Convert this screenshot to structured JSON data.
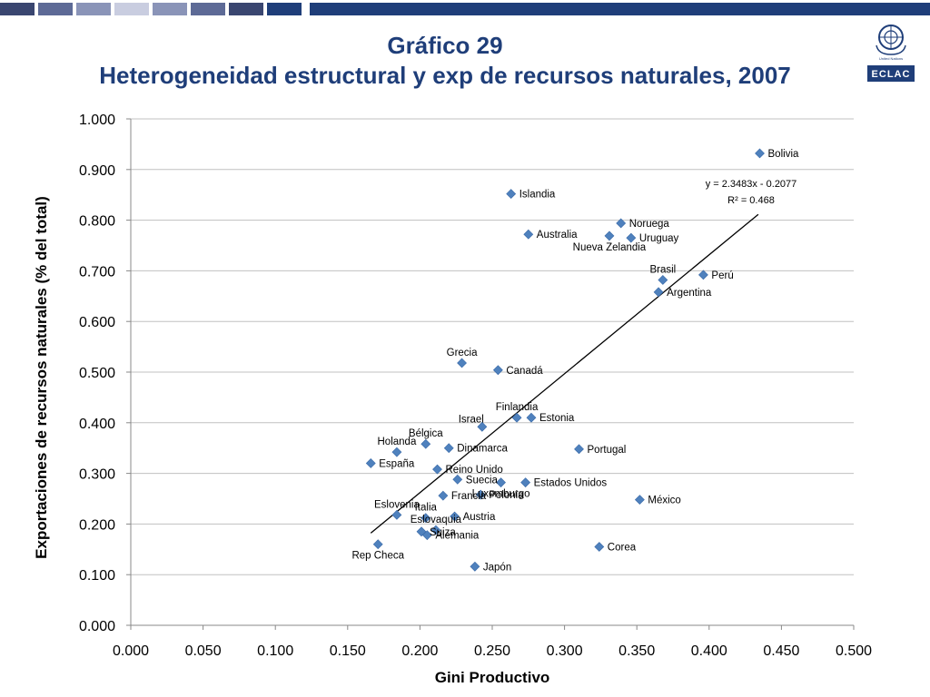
{
  "header": {
    "bar_colors": [
      "#3a4670",
      "#5d6a96",
      "#8a94b8",
      "#c9cde0",
      "#8a94b8",
      "#5d6a96",
      "#3a4670",
      "#1f3e79"
    ],
    "title_line1": "Gráfico 29",
    "title_line2": "Heterogeneidad estructural y exp de recursos naturales, 2007",
    "logo_text": "ECLAC",
    "logo_subtext": "United Nations"
  },
  "colors": {
    "title": "#1f3e79",
    "marker": "#4f81bd",
    "grid": "#c0c0c0",
    "trendline": "#000000"
  },
  "chart_data": {
    "type": "scatter",
    "xlabel": "Gini  Productivo",
    "ylabel": "Exportaciones de recursos naturales (% del total)",
    "xlim": [
      0,
      0.5
    ],
    "ylim": [
      0,
      1
    ],
    "x_ticks": [
      "0.000",
      "0.050",
      "0.100",
      "0.150",
      "0.200",
      "0.250",
      "0.300",
      "0.350",
      "0.400",
      "0.450",
      "0.500"
    ],
    "y_ticks": [
      "0.000",
      "0.100",
      "0.200",
      "0.300",
      "0.400",
      "0.500",
      "0.600",
      "0.700",
      "0.800",
      "0.900",
      "1.000"
    ],
    "grid": "horizontal",
    "trendline": {
      "equation": "y = 2.3483x - 0.2077",
      "r2": "R² = 0.468",
      "slope": 2.3483,
      "intercept": -0.2077,
      "x_range": [
        0.166,
        0.434
      ]
    },
    "points": [
      {
        "label": "Bolivia",
        "x": 0.435,
        "y": 0.932,
        "pos": "right"
      },
      {
        "label": "Islandia",
        "x": 0.263,
        "y": 0.852,
        "pos": "right"
      },
      {
        "label": "Noruega",
        "x": 0.339,
        "y": 0.794,
        "pos": "right"
      },
      {
        "label": "Australia",
        "x": 0.275,
        "y": 0.772,
        "pos": "right"
      },
      {
        "label": "Nueva Zelandia",
        "x": 0.331,
        "y": 0.769,
        "pos": "below"
      },
      {
        "label": "Uruguay",
        "x": 0.346,
        "y": 0.765,
        "pos": "right"
      },
      {
        "label": "Perú",
        "x": 0.396,
        "y": 0.692,
        "pos": "right"
      },
      {
        "label": "Brasil",
        "x": 0.368,
        "y": 0.682,
        "pos": "above"
      },
      {
        "label": "Argentina",
        "x": 0.365,
        "y": 0.658,
        "pos": "right"
      },
      {
        "label": "Grecia",
        "x": 0.229,
        "y": 0.518,
        "pos": "above"
      },
      {
        "label": "Canadá",
        "x": 0.254,
        "y": 0.504,
        "pos": "right"
      },
      {
        "label": "Finlandia",
        "x": 0.267,
        "y": 0.41,
        "pos": "above"
      },
      {
        "label": "Estonia",
        "x": 0.277,
        "y": 0.41,
        "pos": "right"
      },
      {
        "label": "Israel",
        "x": 0.243,
        "y": 0.392,
        "pos": "left-above"
      },
      {
        "label": "Bélgica",
        "x": 0.204,
        "y": 0.358,
        "pos": "above"
      },
      {
        "label": "Holanda",
        "x": 0.184,
        "y": 0.342,
        "pos": "above"
      },
      {
        "label": "Dinamarca",
        "x": 0.22,
        "y": 0.35,
        "pos": "right"
      },
      {
        "label": "Portugal",
        "x": 0.31,
        "y": 0.348,
        "pos": "right"
      },
      {
        "label": "España",
        "x": 0.166,
        "y": 0.32,
        "pos": "right"
      },
      {
        "label": "Reino Unido",
        "x": 0.212,
        "y": 0.308,
        "pos": "right"
      },
      {
        "label": "Suecia",
        "x": 0.226,
        "y": 0.288,
        "pos": "right"
      },
      {
        "label": "Estados Unidos",
        "x": 0.273,
        "y": 0.282,
        "pos": "right"
      },
      {
        "label": "Francia",
        "x": 0.216,
        "y": 0.256,
        "pos": "right"
      },
      {
        "label": "Polonia",
        "x": 0.242,
        "y": 0.258,
        "pos": "right"
      },
      {
        "label": "México",
        "x": 0.352,
        "y": 0.248,
        "pos": "right"
      },
      {
        "label": "Luxemburgo",
        "x": 0.256,
        "y": 0.282,
        "pos": "below"
      },
      {
        "label": "Eslovenia",
        "x": 0.184,
        "y": 0.218,
        "pos": "above"
      },
      {
        "label": "Italia",
        "x": 0.204,
        "y": 0.212,
        "pos": "above"
      },
      {
        "label": "Austria",
        "x": 0.224,
        "y": 0.215,
        "pos": "right"
      },
      {
        "label": "Eslovaquia",
        "x": 0.211,
        "y": 0.188,
        "pos": "above"
      },
      {
        "label": "Suiza",
        "x": 0.201,
        "y": 0.185,
        "pos": "right"
      },
      {
        "label": "Alemania",
        "x": 0.205,
        "y": 0.178,
        "pos": "right"
      },
      {
        "label": "Rep Checa",
        "x": 0.171,
        "y": 0.16,
        "pos": "below"
      },
      {
        "label": "Corea",
        "x": 0.324,
        "y": 0.155,
        "pos": "right"
      },
      {
        "label": "Japón",
        "x": 0.238,
        "y": 0.116,
        "pos": "right"
      }
    ]
  }
}
